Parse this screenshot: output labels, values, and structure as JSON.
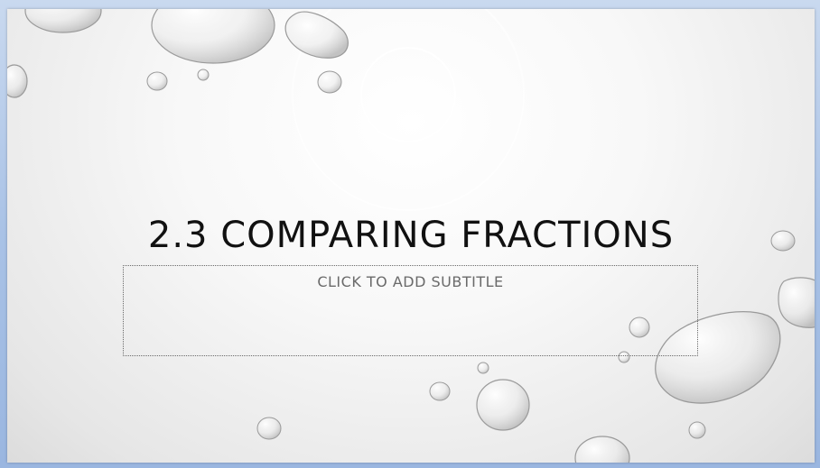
{
  "slide": {
    "title": "2.3 COMPARING FRACTIONS",
    "subtitle_placeholder": "CLICK TO ADD SUBTITLE"
  },
  "colors": {
    "window_frame": "#a9c2e6",
    "slide_background": "#f5f5f5",
    "title_text": "#111111",
    "placeholder_text": "#6a6a6a"
  }
}
